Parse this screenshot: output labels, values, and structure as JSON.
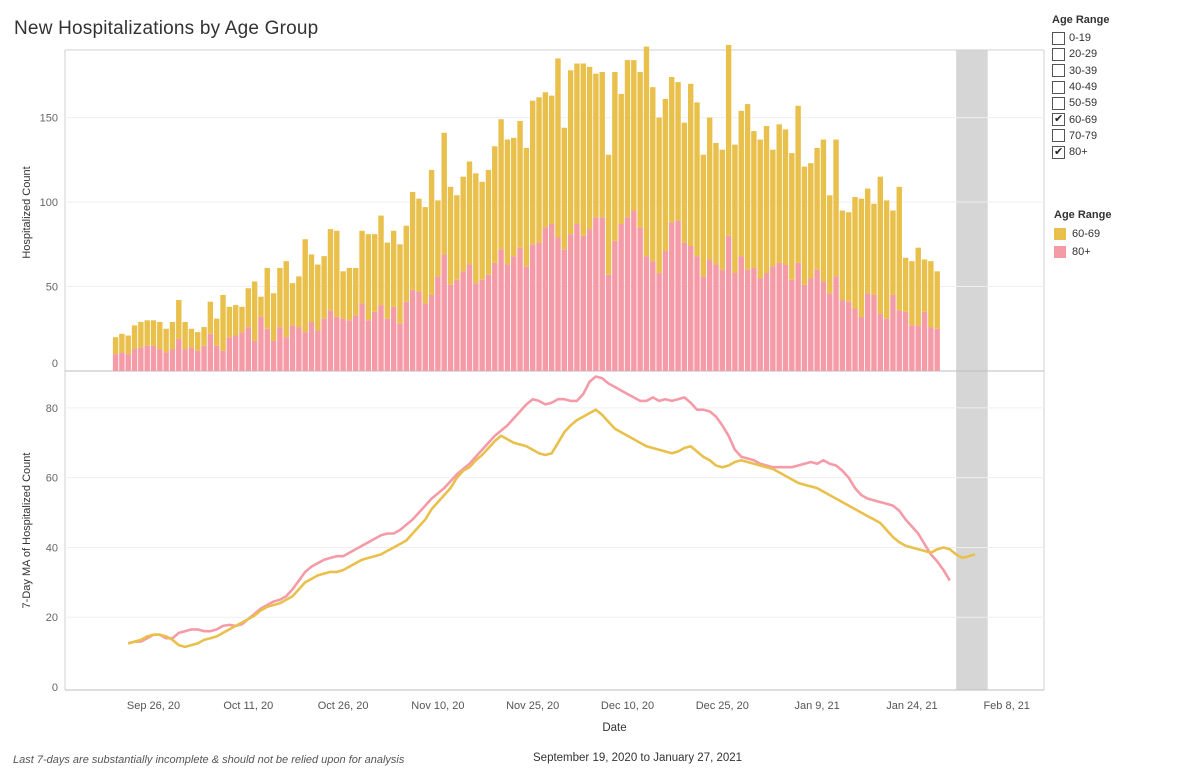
{
  "page": {
    "title": "New Hospitalizations by Age Group",
    "footnote": "Last 7-days are substantially incomplete & should not be relied upon for analysis",
    "date_range": "September 19, 2020 to January 27, 2021"
  },
  "filter": {
    "title": "Age Range",
    "options": [
      {
        "label": "0-19",
        "checked": false
      },
      {
        "label": "20-29",
        "checked": false
      },
      {
        "label": "30-39",
        "checked": false
      },
      {
        "label": "40-49",
        "checked": false
      },
      {
        "label": "50-59",
        "checked": false
      },
      {
        "label": "60-69",
        "checked": true
      },
      {
        "label": "70-79",
        "checked": false
      },
      {
        "label": "80+",
        "checked": true
      }
    ]
  },
  "color_legend": {
    "title": "Age Range",
    "items": [
      {
        "label": "60-69",
        "color": "#e9c04c"
      },
      {
        "label": "80+",
        "color": "#f59ba7"
      }
    ]
  },
  "chart_data": [
    {
      "type": "bar",
      "stacked": true,
      "ylabel": "Hospitalized Count",
      "ylim": [
        0,
        190
      ],
      "yticks": [
        0,
        50,
        100,
        150
      ],
      "x_start_date": "2020-09-20",
      "x_end_date": "2021-01-27",
      "shaded_region": {
        "from": "2021-01-31",
        "to": "2021-02-05",
        "color": "#d6d6d6"
      },
      "series": [
        {
          "name": "80+",
          "color": "#f59ba7",
          "values": [
            10,
            11,
            10,
            13,
            14,
            15,
            15,
            13,
            11,
            13,
            19,
            13,
            14,
            12,
            15,
            22,
            15,
            12,
            20,
            21,
            23,
            26,
            18,
            32,
            25,
            18,
            26,
            20,
            27,
            26,
            23,
            29,
            24,
            31,
            36,
            32,
            31,
            30,
            33,
            40,
            30,
            35,
            39,
            31,
            38,
            28,
            41,
            48,
            47,
            40,
            45,
            56,
            69,
            51,
            54,
            59,
            63,
            52,
            54,
            57,
            64,
            72,
            63,
            68,
            73,
            62,
            75,
            76,
            85,
            87,
            79,
            72,
            81,
            87,
            80,
            84,
            91,
            91,
            57,
            77,
            87,
            91,
            95,
            85,
            68,
            65,
            58,
            71,
            88,
            89,
            76,
            74,
            68,
            56,
            66,
            63,
            60,
            80,
            58,
            68,
            60,
            61,
            55,
            58,
            62,
            64,
            63,
            54,
            64,
            51,
            55,
            60,
            53,
            46,
            56,
            42,
            41,
            37,
            32,
            46,
            45,
            34,
            31,
            45,
            36,
            35,
            27,
            27,
            35,
            26,
            25
          ]
        },
        {
          "name": "60-69",
          "color": "#e9c04c",
          "values": [
            10,
            11,
            11,
            14,
            15,
            15,
            15,
            16,
            14,
            16,
            23,
            16,
            11,
            11,
            11,
            19,
            16,
            33,
            18,
            18,
            15,
            23,
            35,
            12,
            36,
            28,
            35,
            45,
            25,
            30,
            55,
            40,
            39,
            37,
            48,
            51,
            28,
            31,
            28,
            43,
            51,
            46,
            53,
            45,
            45,
            47,
            45,
            58,
            55,
            57,
            74,
            45,
            72,
            58,
            50,
            56,
            61,
            65,
            58,
            62,
            69,
            77,
            74,
            70,
            75,
            70,
            85,
            86,
            80,
            76,
            106,
            72,
            97,
            95,
            102,
            96,
            85,
            86,
            71,
            100,
            77,
            93,
            89,
            92,
            124,
            103,
            92,
            90,
            86,
            82,
            71,
            96,
            91,
            72,
            84,
            72,
            71,
            113,
            76,
            86,
            98,
            81,
            82,
            87,
            69,
            82,
            80,
            75,
            93,
            70,
            68,
            72,
            84,
            58,
            81,
            53,
            53,
            66,
            70,
            62,
            54,
            81,
            70,
            50,
            73,
            32,
            38,
            46,
            31,
            39,
            34
          ]
        }
      ],
      "x_note": "one bar per day from 2020-09-20 to 2021-01-27 (x = date)"
    },
    {
      "type": "line",
      "ylabel": "7-Day MA of Hospitalized Count",
      "xlabel": "Date",
      "ylim": [
        0,
        88
      ],
      "yticks": [
        0,
        20,
        40,
        60,
        80
      ],
      "x_start_date": "2020-09-22",
      "x_end_date": "2021-01-26",
      "xticks": [
        "Sep 26, 20",
        "Oct 11, 20",
        "Oct 26, 20",
        "Nov 10, 20",
        "Nov 25, 20",
        "Dec 10, 20",
        "Dec 25, 20",
        "Jan 9, 21",
        "Jan 24, 21",
        "Feb 8, 21"
      ],
      "series": [
        {
          "name": "80+",
          "color": "#f59ba7",
          "values": [
            12.5,
            13,
            13,
            14,
            15,
            15,
            14,
            14,
            15.5,
            16,
            16.5,
            16.5,
            16,
            16,
            16.5,
            17.5,
            17.8,
            17.5,
            18,
            19.5,
            21,
            22.5,
            23.5,
            24.5,
            25,
            26,
            28,
            30.5,
            33,
            34.5,
            35.5,
            36.5,
            37,
            37.5,
            37.5,
            38.5,
            39.5,
            40.5,
            41.5,
            42.5,
            43.5,
            44,
            44,
            45,
            46.5,
            48,
            50,
            52,
            54,
            55.5,
            57,
            59,
            61,
            62.5,
            64,
            66,
            68,
            70,
            72,
            73.5,
            75,
            77,
            79,
            81,
            82.5,
            82,
            81,
            81.5,
            82.5,
            82.5,
            82,
            82,
            84,
            87.5,
            89,
            88.5,
            87,
            86,
            85,
            84,
            83,
            82,
            82,
            83,
            82,
            82.5,
            82,
            82.5,
            83,
            81.5,
            79.5,
            79.5,
            79,
            77.5,
            75,
            72,
            68,
            66,
            65.5,
            65,
            64,
            63.5,
            63,
            63,
            63,
            63,
            63.5,
            64,
            64.5,
            64,
            65,
            64,
            63.5,
            62,
            60,
            57,
            55,
            54,
            53.5,
            53,
            52.5,
            52,
            50.5,
            48,
            46,
            44,
            41,
            38,
            36,
            33.5,
            30.5
          ]
        },
        {
          "name": "60-69",
          "color": "#e9c04c",
          "values": [
            12.5,
            13,
            13.5,
            14.5,
            15,
            15,
            14.5,
            13.5,
            12,
            11.5,
            12,
            12.5,
            13.5,
            14,
            14.5,
            15.5,
            16.5,
            17.5,
            18.5,
            19.5,
            20.5,
            22,
            23,
            23.5,
            24,
            25,
            26,
            28,
            30,
            31,
            32,
            32.5,
            33,
            33,
            33.5,
            34.5,
            35.5,
            36.5,
            37,
            37.5,
            38,
            39,
            40,
            41,
            42,
            44,
            46,
            48,
            51,
            53,
            55,
            57,
            60,
            62,
            63,
            65,
            66.5,
            68.5,
            70.5,
            72,
            71,
            70,
            69.5,
            69,
            68,
            67,
            66.5,
            67,
            70,
            73,
            75,
            76.5,
            77.5,
            78.5,
            79.5,
            78,
            76,
            74,
            73,
            72,
            71,
            70,
            69,
            68.5,
            68,
            67.5,
            67,
            67.5,
            68.5,
            69,
            67.5,
            66,
            65,
            63.5,
            63,
            63.5,
            64.5,
            65,
            64.5,
            64,
            63.5,
            63,
            62.5,
            61.5,
            60.5,
            59.5,
            58.5,
            58,
            57.5,
            57,
            56,
            55,
            54,
            53,
            52,
            51,
            50,
            49,
            48,
            47,
            45,
            43,
            41.5,
            40.5,
            40,
            39.5,
            39,
            38.5,
            39.5,
            40,
            39.5,
            38,
            37,
            37.5,
            38
          ]
        }
      ]
    }
  ]
}
